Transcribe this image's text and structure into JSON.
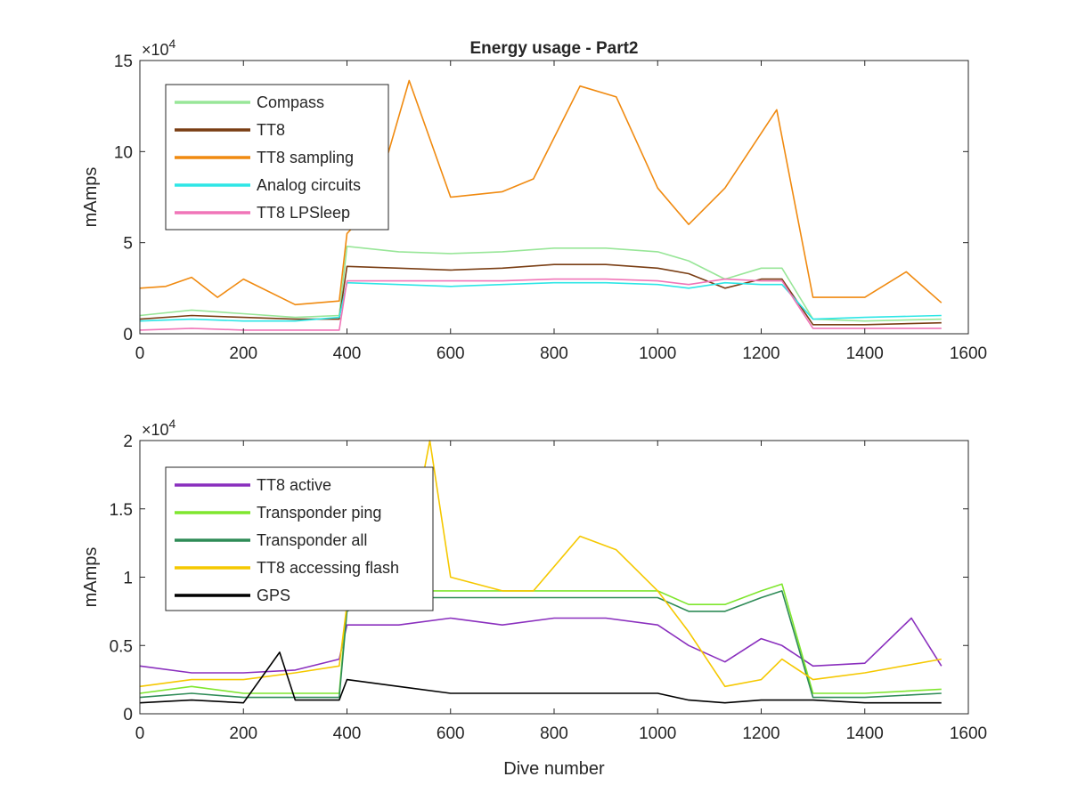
{
  "chart_data": [
    {
      "type": "line",
      "title": "Energy usage - Part2",
      "xlabel": "",
      "ylabel": "mAmps",
      "xlim": [
        0,
        1600
      ],
      "ylim": [
        0,
        150000
      ],
      "x_ticks": [
        0,
        200,
        400,
        600,
        800,
        1000,
        1200,
        1400,
        1600
      ],
      "y_ticks": [
        0,
        50000,
        100000,
        150000
      ],
      "y_tick_labels": [
        "0",
        "5",
        "10",
        "15"
      ],
      "y_exponent_label": "×10",
      "y_exponent_power": "4",
      "grid": false,
      "legend_position": "top-left",
      "series": [
        {
          "name": "Compass",
          "color": "#98e698",
          "x": [
            0,
            100,
            200,
            300,
            385,
            400,
            500,
            600,
            700,
            800,
            900,
            1000,
            1060,
            1130,
            1200,
            1240,
            1300,
            1400,
            1548
          ],
          "y": [
            10000,
            13000,
            11000,
            9000,
            10000,
            48000,
            45000,
            44000,
            45000,
            47000,
            47000,
            45000,
            40000,
            30000,
            36000,
            36000,
            8000,
            7000,
            8000
          ]
        },
        {
          "name": "TT8",
          "color": "#7a3e14",
          "x": [
            0,
            100,
            200,
            300,
            385,
            400,
            500,
            600,
            700,
            800,
            900,
            1000,
            1060,
            1130,
            1200,
            1240,
            1300,
            1400,
            1548
          ],
          "y": [
            8000,
            10000,
            9000,
            8000,
            8000,
            37000,
            36000,
            35000,
            36000,
            38000,
            38000,
            36000,
            33000,
            25000,
            30000,
            30000,
            5000,
            5000,
            6000
          ]
        },
        {
          "name": "TT8 sampling",
          "color": "#f08a10",
          "x": [
            0,
            50,
            100,
            150,
            200,
            300,
            385,
            400,
            450,
            520,
            600,
            700,
            760,
            850,
            920,
            1000,
            1060,
            1130,
            1230,
            1300,
            1400,
            1480,
            1548
          ],
          "y": [
            25000,
            26000,
            31000,
            20000,
            30000,
            16000,
            18000,
            55000,
            70000,
            139000,
            75000,
            78000,
            85000,
            136000,
            130000,
            80000,
            60000,
            80000,
            123000,
            20000,
            20000,
            34000,
            17000
          ]
        },
        {
          "name": "Analog circuits",
          "color": "#2ee6e6",
          "x": [
            0,
            100,
            200,
            300,
            385,
            400,
            500,
            600,
            700,
            800,
            900,
            1000,
            1060,
            1130,
            1200,
            1240,
            1300,
            1400,
            1548
          ],
          "y": [
            7000,
            8000,
            7000,
            7000,
            9000,
            28000,
            27000,
            26000,
            27000,
            28000,
            28000,
            27000,
            25000,
            28000,
            27000,
            27000,
            8000,
            9000,
            10000
          ]
        },
        {
          "name": "TT8 LPSleep",
          "color": "#f075b8",
          "x": [
            0,
            100,
            200,
            300,
            385,
            400,
            500,
            600,
            700,
            800,
            900,
            1000,
            1060,
            1130,
            1200,
            1240,
            1300,
            1400,
            1548
          ],
          "y": [
            2000,
            3000,
            2000,
            2000,
            2000,
            29000,
            29000,
            29000,
            29000,
            30000,
            30000,
            29000,
            27000,
            30000,
            29000,
            29000,
            3000,
            3000,
            3000
          ]
        }
      ]
    },
    {
      "type": "line",
      "title": "",
      "xlabel": "Dive number",
      "ylabel": "mAmps",
      "xlim": [
        0,
        1600
      ],
      "ylim": [
        0,
        20000
      ],
      "x_ticks": [
        0,
        200,
        400,
        600,
        800,
        1000,
        1200,
        1400,
        1600
      ],
      "y_ticks": [
        0,
        5000,
        10000,
        15000,
        20000
      ],
      "y_tick_labels": [
        "0",
        "0.5",
        "1",
        "1.5",
        "2"
      ],
      "y_exponent_label": "×10",
      "y_exponent_power": "4",
      "grid": false,
      "legend_position": "top-left",
      "series": [
        {
          "name": "TT8 active",
          "color": "#8a2fbe",
          "x": [
            0,
            100,
            200,
            300,
            385,
            400,
            500,
            600,
            700,
            800,
            900,
            1000,
            1060,
            1130,
            1200,
            1240,
            1300,
            1400,
            1490,
            1548
          ],
          "y": [
            3500,
            3000,
            3000,
            3200,
            4000,
            6500,
            6500,
            7000,
            6500,
            7000,
            7000,
            6500,
            5000,
            3800,
            5500,
            5000,
            3500,
            3700,
            7000,
            3500
          ]
        },
        {
          "name": "Transponder ping",
          "color": "#7fe62e",
          "x": [
            0,
            100,
            200,
            385,
            400,
            450,
            560,
            650,
            760,
            850,
            920,
            1000,
            1060,
            1130,
            1200,
            1240,
            1300,
            1400,
            1548
          ],
          "y": [
            1500,
            2000,
            1500,
            1500,
            8000,
            9000,
            9000,
            9000,
            9000,
            9000,
            9000,
            9000,
            8000,
            8000,
            9000,
            9500,
            1500,
            1500,
            1800
          ]
        },
        {
          "name": "Transponder all",
          "color": "#2e8b57",
          "x": [
            0,
            100,
            200,
            385,
            400,
            450,
            560,
            650,
            760,
            850,
            920,
            1000,
            1060,
            1130,
            1200,
            1240,
            1300,
            1400,
            1548
          ],
          "y": [
            1200,
            1500,
            1200,
            1200,
            7500,
            8500,
            8500,
            8500,
            8500,
            8500,
            8500,
            8500,
            7500,
            7500,
            8500,
            9000,
            1200,
            1200,
            1500
          ]
        },
        {
          "name": "TT8 accessing flash",
          "color": "#f5c800",
          "x": [
            0,
            100,
            200,
            300,
            385,
            400,
            500,
            560,
            600,
            700,
            760,
            850,
            920,
            1000,
            1060,
            1130,
            1200,
            1240,
            1300,
            1400,
            1548
          ],
          "y": [
            2000,
            2500,
            2500,
            3000,
            3500,
            8000,
            8000,
            20000,
            10000,
            9000,
            9000,
            13000,
            12000,
            9000,
            6000,
            2000,
            2500,
            4000,
            2500,
            3000,
            4000
          ]
        },
        {
          "name": "GPS",
          "color": "#000000",
          "x": [
            0,
            100,
            200,
            270,
            300,
            385,
            400,
            500,
            600,
            700,
            800,
            900,
            1000,
            1060,
            1130,
            1200,
            1240,
            1300,
            1400,
            1548
          ],
          "y": [
            800,
            1000,
            800,
            4500,
            1000,
            1000,
            2500,
            2000,
            1500,
            1500,
            1500,
            1500,
            1500,
            1000,
            800,
            1000,
            1000,
            1000,
            800,
            800
          ]
        }
      ]
    }
  ]
}
